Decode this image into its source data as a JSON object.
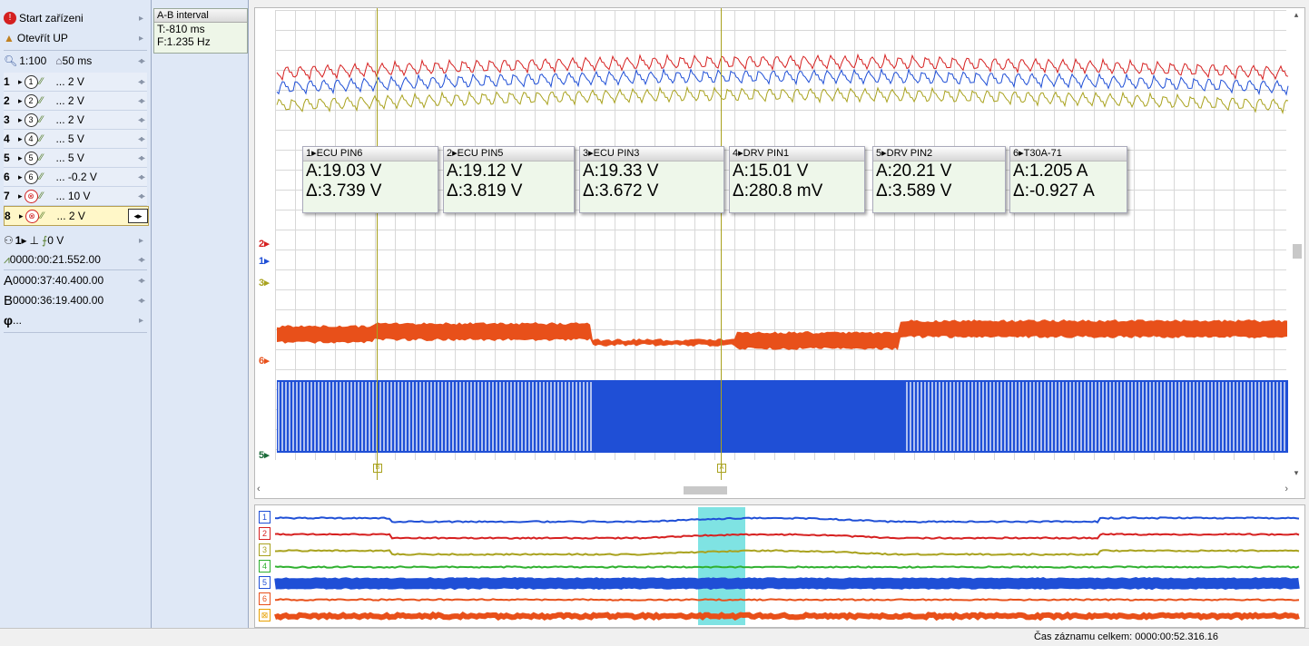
{
  "sidebar": {
    "start_device": "Start zařízeni",
    "open_up": "Otevřít UP",
    "zoom": "1:100",
    "timebase": "50 ms",
    "channels": [
      {
        "num": "1",
        "circle": "1",
        "scale": "... 2 V",
        "color": "#1f4fd6"
      },
      {
        "num": "2",
        "circle": "2",
        "scale": "... 2 V",
        "color": "#d62020"
      },
      {
        "num": "3",
        "circle": "3",
        "scale": "... 2 V",
        "color": "#a9a21e"
      },
      {
        "num": "4",
        "circle": "4",
        "scale": "... 5 V",
        "color": "#2fb02f"
      },
      {
        "num": "5",
        "circle": "5",
        "scale": "... 5 V",
        "color": "#1f4fd6"
      },
      {
        "num": "6",
        "circle": "6",
        "scale": "... -0.2 V",
        "color": "#e8501a"
      },
      {
        "num": "7",
        "circle": "⊗",
        "scale": "... 10 V",
        "color": "#d02020"
      },
      {
        "num": "8",
        "circle": "⊗",
        "scale": "... 2 V",
        "color": "#d02020"
      }
    ],
    "trigger": {
      "channel": "1",
      "level": "0 V"
    },
    "time_offset": "0000:00:21.552.00",
    "cursor_a": "0000:37:40.400.00",
    "cursor_b": "0000:36:19.400.00",
    "phi": "..."
  },
  "ab_interval": {
    "title": "A-B interval",
    "t": "T:-810 ms",
    "f": "F:1.235 Hz"
  },
  "measurements": [
    {
      "title": "1▸ECU PIN6",
      "a": "A:19.03 V",
      "d": "Δ:3.739 V"
    },
    {
      "title": "2▸ECU PIN5",
      "a": "A:19.12 V",
      "d": "Δ:3.819 V"
    },
    {
      "title": "3▸ECU PIN3",
      "a": "A:19.33 V",
      "d": "Δ:3.672 V"
    },
    {
      "title": "4▸DRV PIN1",
      "a": "A:15.01 V",
      "d": "Δ:280.8 mV"
    },
    {
      "title": "5▸DRV PIN2",
      "a": "A:20.21 V",
      "d": "Δ:3.589 V"
    },
    {
      "title": "6▸T30A-71",
      "a": "A:1.205 A",
      "d": "Δ:-0.927 A"
    }
  ],
  "channel_markers": [
    "2▸",
    "1▸",
    "3▸",
    "6▸",
    "5▸"
  ],
  "cursor_labels": {
    "a": "A",
    "b": "B"
  },
  "overview_labels": [
    "1",
    "2",
    "3",
    "4",
    "5",
    "6",
    "⊠"
  ],
  "status": {
    "record_time": "Čas záznamu celkem: 0000:00:52.316.16"
  },
  "colors": {
    "ch1": "#1f4fd6",
    "ch2": "#d62020",
    "ch3": "#a9a21e",
    "ch4": "#2fb02f",
    "ch5": "#1f4fd6",
    "ch6": "#e8501a",
    "selection": "#7fe3e3"
  }
}
